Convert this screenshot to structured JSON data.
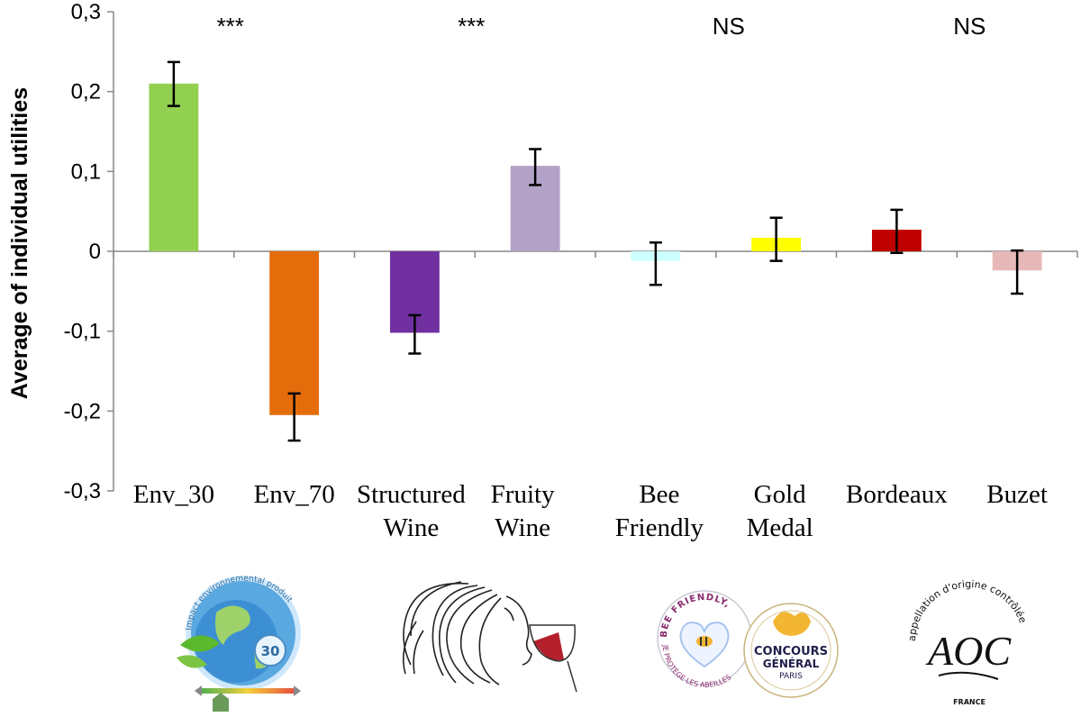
{
  "chart_data": {
    "type": "bar",
    "ylabel": "Average of individual utilities",
    "ylim": [
      -0.3,
      0.3
    ],
    "yticks": [
      "0,3",
      "0,2",
      "0,1",
      "0",
      "-0,1",
      "-0,2",
      "-0,3"
    ],
    "categories": [
      [
        "Env_30"
      ],
      [
        "Env_70"
      ],
      [
        "Structured",
        "Wine"
      ],
      [
        "Fruity",
        "Wine"
      ],
      [
        "Bee",
        "Friendly"
      ],
      [
        "Gold",
        "Medal"
      ],
      [
        "Bordeaux"
      ],
      [
        "Buzet"
      ]
    ],
    "values": [
      0.21,
      -0.205,
      -0.102,
      0.107,
      -0.012,
      0.017,
      0.027,
      -0.024
    ],
    "error_low": [
      0.182,
      -0.237,
      -0.128,
      0.083,
      -0.042,
      -0.012,
      -0.002,
      -0.053
    ],
    "error_high": [
      0.237,
      -0.178,
      -0.08,
      0.128,
      0.011,
      0.042,
      0.052,
      0.001
    ],
    "colors": [
      "#92d050",
      "#e46c0a",
      "#7030a0",
      "#b3a2c7",
      "#ccffff",
      "#ffff00",
      "#c00000",
      "#e6b9b8"
    ],
    "significance": [
      {
        "label": "***",
        "pair": [
          0,
          1
        ]
      },
      {
        "label": "***",
        "pair": [
          2,
          3
        ]
      },
      {
        "label": "NS",
        "pair": [
          4,
          5
        ]
      },
      {
        "label": "NS",
        "pair": [
          6,
          7
        ]
      }
    ],
    "grid": false
  },
  "logos": {
    "impact_number": "30",
    "impact_ring_text": "Impact environnemental produit",
    "bee_ring_text": "BEE FRIENDLY,",
    "bee_sub_text": "JE PROTÈGE LES ABEILLES",
    "concours_line1": "CONCOURS",
    "concours_line2": "GÉNÉRAL",
    "concours_line3": "PARIS",
    "aoc_ring_text": "appellation d'origine contrôlée",
    "aoc_mark": "AOC",
    "aoc_country": "FRANCE"
  }
}
